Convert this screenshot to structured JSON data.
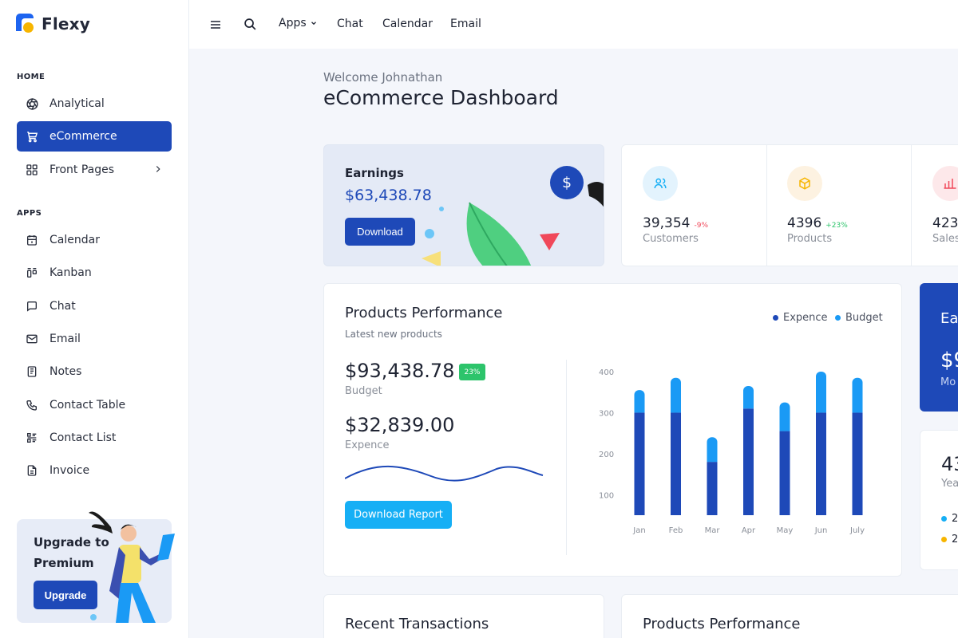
{
  "app": {
    "name": "Flexy"
  },
  "sidebar": {
    "sections": {
      "home": "HOME",
      "apps": "APPS"
    },
    "home_items": [
      {
        "label": "Analytical",
        "icon": "aperture-icon"
      },
      {
        "label": "eCommerce",
        "icon": "cart-icon",
        "active": true
      },
      {
        "label": "Front Pages",
        "icon": "grid-icon"
      }
    ],
    "app_items": [
      {
        "label": "Calendar",
        "icon": "calendar-icon"
      },
      {
        "label": "Kanban",
        "icon": "kanban-icon"
      },
      {
        "label": "Chat",
        "icon": "chat-icon"
      },
      {
        "label": "Email",
        "icon": "mail-icon"
      },
      {
        "label": "Notes",
        "icon": "notes-icon"
      },
      {
        "label": "Contact Table",
        "icon": "phone-icon"
      },
      {
        "label": "Contact List",
        "icon": "list-icon"
      },
      {
        "label": "Invoice",
        "icon": "invoice-icon"
      }
    ],
    "upgrade": {
      "title": "Upgrade to Premium",
      "button": "Upgrade"
    }
  },
  "topbar": {
    "links": [
      "Apps",
      "Chat",
      "Calendar",
      "Email"
    ]
  },
  "main": {
    "welcome": "Welcome Johnathan",
    "title": "eCommerce Dashboard",
    "earnings": {
      "label": "Earnings",
      "value": "$63,438.78",
      "button": "Download",
      "icon_symbol": "$"
    },
    "stats": [
      {
        "value": "39,354",
        "delta": "-9%",
        "delta_color": "#f0485a",
        "label": "Customers",
        "bg": "#e3f3fd",
        "fg": "#16aff5",
        "icon": "users-icon"
      },
      {
        "value": "4396",
        "delta": "+23%",
        "delta_color": "#2dc46b",
        "label": "Products",
        "bg": "#fdf2e1",
        "fg": "#f7b500",
        "icon": "box-icon"
      },
      {
        "value": "423,",
        "delta": "",
        "delta_color": "#2dc46b",
        "label": "Sales",
        "bg": "#fde8ea",
        "fg": "#f0485a",
        "icon": "bar-chart-icon"
      }
    ],
    "performance": {
      "title": "Products Performance",
      "subtitle": "Latest new products",
      "legend": [
        {
          "name": "Expence",
          "color": "#1e49b8"
        },
        {
          "name": "Budget",
          "color": "#1a9af5"
        }
      ],
      "budget_value": "$93,438.78",
      "budget_badge": "23%",
      "budget_label": "Budget",
      "expence_value": "$32,839.00",
      "expence_label": "Expence",
      "button": "Download Report"
    },
    "side_blue": {
      "title": "Ea",
      "value": "$9",
      "sub": "Mo"
    },
    "side_white": {
      "value": "43",
      "sub": "Yea",
      "rows": [
        "2",
        "2"
      ]
    },
    "bottom_cards": [
      "Recent Transactions",
      "Products Performance"
    ]
  },
  "chart_data": {
    "type": "bar",
    "stacked": true,
    "categories": [
      "Jan",
      "Feb",
      "Mar",
      "Apr",
      "May",
      "Jun",
      "July"
    ],
    "series": [
      {
        "name": "Expence",
        "values": [
          300,
          300,
          180,
          310,
          255,
          300,
          300
        ],
        "color": "#1e49b8"
      },
      {
        "name": "Budget",
        "values": [
          55,
          85,
          60,
          55,
          70,
          100,
          85
        ],
        "color": "#1a9af5"
      }
    ],
    "yticks": [
      100,
      200,
      300,
      400
    ],
    "ylim": [
      50,
      400
    ]
  }
}
